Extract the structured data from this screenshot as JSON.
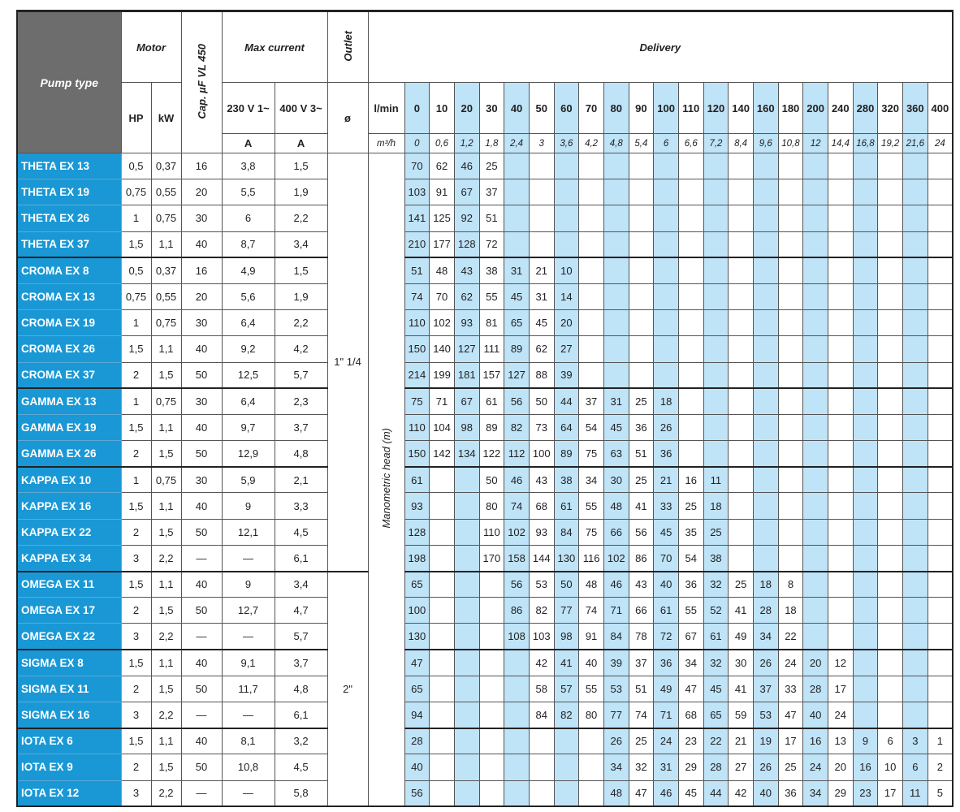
{
  "header": {
    "pump_type": "Pump type",
    "motor": "Motor",
    "hp": "HP",
    "kw": "kW",
    "cap": "Cap. µF VL 450",
    "max_current": "Max current",
    "v230": "230 V 1~",
    "v400": "400 V 3~",
    "unit_a1": "A",
    "unit_a2": "A",
    "outlet": "Outlet",
    "outlet_symbol": "ø",
    "delivery": "Delivery",
    "lmin_label": "l/min",
    "m3h_label": "m³/h",
    "head_label": "Manometric head (m)"
  },
  "flow_lmin": [
    "0",
    "10",
    "20",
    "30",
    "40",
    "50",
    "60",
    "70",
    "80",
    "90",
    "100",
    "110",
    "120",
    "140",
    "160",
    "180",
    "200",
    "240",
    "280",
    "320",
    "360",
    "400"
  ],
  "flow_m3h": [
    "0",
    "0,6",
    "1,2",
    "1,8",
    "2,4",
    "3",
    "3,6",
    "4,2",
    "4,8",
    "5,4",
    "6",
    "6,6",
    "7,2",
    "8,4",
    "9,6",
    "10,8",
    "12",
    "14,4",
    "16,8",
    "19,2",
    "21,6",
    "24"
  ],
  "outlets": [
    {
      "label": "1\" 1/4",
      "rows": 16
    },
    {
      "label": "2\"",
      "rows": 9
    }
  ],
  "colors": {
    "pump_name_bg": "#1a98d5",
    "header_bg": "#6d6d6d",
    "stripe": "#bfe3f7"
  },
  "groups": [
    {
      "rows": [
        {
          "name": "THETA EX 13",
          "hp": "0,5",
          "kw": "0,37",
          "cap": "16",
          "a230": "3,8",
          "a400": "1,5",
          "head": [
            "70",
            "62",
            "46",
            "25"
          ]
        },
        {
          "name": "THETA EX 19",
          "hp": "0,75",
          "kw": "0,55",
          "cap": "20",
          "a230": "5,5",
          "a400": "1,9",
          "head": [
            "103",
            "91",
            "67",
            "37"
          ]
        },
        {
          "name": "THETA EX 26",
          "hp": "1",
          "kw": "0,75",
          "cap": "30",
          "a230": "6",
          "a400": "2,2",
          "head": [
            "141",
            "125",
            "92",
            "51"
          ]
        },
        {
          "name": "THETA EX 37",
          "hp": "1,5",
          "kw": "1,1",
          "cap": "40",
          "a230": "8,7",
          "a400": "3,4",
          "head": [
            "210",
            "177",
            "128",
            "72"
          ]
        }
      ]
    },
    {
      "rows": [
        {
          "name": "CROMA EX 8",
          "hp": "0,5",
          "kw": "0,37",
          "cap": "16",
          "a230": "4,9",
          "a400": "1,5",
          "head": [
            "51",
            "48",
            "43",
            "38",
            "31",
            "21",
            "10"
          ]
        },
        {
          "name": "CROMA EX 13",
          "hp": "0,75",
          "kw": "0,55",
          "cap": "20",
          "a230": "5,6",
          "a400": "1,9",
          "head": [
            "74",
            "70",
            "62",
            "55",
            "45",
            "31",
            "14"
          ]
        },
        {
          "name": "CROMA EX 19",
          "hp": "1",
          "kw": "0,75",
          "cap": "30",
          "a230": "6,4",
          "a400": "2,2",
          "head": [
            "110",
            "102",
            "93",
            "81",
            "65",
            "45",
            "20"
          ]
        },
        {
          "name": "CROMA EX 26",
          "hp": "1,5",
          "kw": "1,1",
          "cap": "40",
          "a230": "9,2",
          "a400": "4,2",
          "head": [
            "150",
            "140",
            "127",
            "111",
            "89",
            "62",
            "27"
          ]
        },
        {
          "name": "CROMA EX 37",
          "hp": "2",
          "kw": "1,5",
          "cap": "50",
          "a230": "12,5",
          "a400": "5,7",
          "head": [
            "214",
            "199",
            "181",
            "157",
            "127",
            "88",
            "39"
          ]
        }
      ]
    },
    {
      "rows": [
        {
          "name": "GAMMA EX 13",
          "hp": "1",
          "kw": "0,75",
          "cap": "30",
          "a230": "6,4",
          "a400": "2,3",
          "head": [
            "75",
            "71",
            "67",
            "61",
            "56",
            "50",
            "44",
            "37",
            "31",
            "25",
            "18"
          ]
        },
        {
          "name": "GAMMA EX 19",
          "hp": "1,5",
          "kw": "1,1",
          "cap": "40",
          "a230": "9,7",
          "a400": "3,7",
          "head": [
            "110",
            "104",
            "98",
            "89",
            "82",
            "73",
            "64",
            "54",
            "45",
            "36",
            "26"
          ]
        },
        {
          "name": "GAMMA EX 26",
          "hp": "2",
          "kw": "1,5",
          "cap": "50",
          "a230": "12,9",
          "a400": "4,8",
          "head": [
            "150",
            "142",
            "134",
            "122",
            "112",
            "100",
            "89",
            "75",
            "63",
            "51",
            "36"
          ]
        }
      ]
    },
    {
      "rows": [
        {
          "name": "KAPPA EX 10",
          "hp": "1",
          "kw": "0,75",
          "cap": "30",
          "a230": "5,9",
          "a400": "2,1",
          "head": [
            "61",
            "",
            "",
            "50",
            "46",
            "43",
            "38",
            "34",
            "30",
            "25",
            "21",
            "16",
            "11"
          ]
        },
        {
          "name": "KAPPA EX 16",
          "hp": "1,5",
          "kw": "1,1",
          "cap": "40",
          "a230": "9",
          "a400": "3,3",
          "head": [
            "93",
            "",
            "",
            "80",
            "74",
            "68",
            "61",
            "55",
            "48",
            "41",
            "33",
            "25",
            "18"
          ]
        },
        {
          "name": "KAPPA EX 22",
          "hp": "2",
          "kw": "1,5",
          "cap": "50",
          "a230": "12,1",
          "a400": "4,5",
          "head": [
            "128",
            "",
            "",
            "110",
            "102",
            "93",
            "84",
            "75",
            "66",
            "56",
            "45",
            "35",
            "25"
          ]
        },
        {
          "name": "KAPPA EX 34",
          "hp": "3",
          "kw": "2,2",
          "cap": "—",
          "a230": "—",
          "a400": "6,1",
          "head": [
            "198",
            "",
            "",
            "170",
            "158",
            "144",
            "130",
            "116",
            "102",
            "86",
            "70",
            "54",
            "38"
          ]
        }
      ]
    },
    {
      "rows": [
        {
          "name": "OMEGA EX 11",
          "hp": "1,5",
          "kw": "1,1",
          "cap": "40",
          "a230": "9",
          "a400": "3,4",
          "head": [
            "65",
            "",
            "",
            "",
            "56",
            "53",
            "50",
            "48",
            "46",
            "43",
            "40",
            "36",
            "32",
            "25",
            "18",
            "8"
          ]
        },
        {
          "name": "OMEGA EX 17",
          "hp": "2",
          "kw": "1,5",
          "cap": "50",
          "a230": "12,7",
          "a400": "4,7",
          "head": [
            "100",
            "",
            "",
            "",
            "86",
            "82",
            "77",
            "74",
            "71",
            "66",
            "61",
            "55",
            "52",
            "41",
            "28",
            "18"
          ]
        },
        {
          "name": "OMEGA EX 22",
          "hp": "3",
          "kw": "2,2",
          "cap": "—",
          "a230": "—",
          "a400": "5,7",
          "head": [
            "130",
            "",
            "",
            "",
            "108",
            "103",
            "98",
            "91",
            "84",
            "78",
            "72",
            "67",
            "61",
            "49",
            "34",
            "22"
          ]
        }
      ]
    },
    {
      "rows": [
        {
          "name": "SIGMA EX 8",
          "hp": "1,5",
          "kw": "1,1",
          "cap": "40",
          "a230": "9,1",
          "a400": "3,7",
          "head": [
            "47",
            "",
            "",
            "",
            "",
            "42",
            "41",
            "40",
            "39",
            "37",
            "36",
            "34",
            "32",
            "30",
            "26",
            "24",
            "20",
            "12"
          ]
        },
        {
          "name": "SIGMA EX 11",
          "hp": "2",
          "kw": "1,5",
          "cap": "50",
          "a230": "11,7",
          "a400": "4,8",
          "head": [
            "65",
            "",
            "",
            "",
            "",
            "58",
            "57",
            "55",
            "53",
            "51",
            "49",
            "47",
            "45",
            "41",
            "37",
            "33",
            "28",
            "17"
          ]
        },
        {
          "name": "SIGMA EX 16",
          "hp": "3",
          "kw": "2,2",
          "cap": "—",
          "a230": "—",
          "a400": "6,1",
          "head": [
            "94",
            "",
            "",
            "",
            "",
            "84",
            "82",
            "80",
            "77",
            "74",
            "71",
            "68",
            "65",
            "59",
            "53",
            "47",
            "40",
            "24"
          ]
        }
      ]
    },
    {
      "rows": [
        {
          "name": "IOTA EX 6",
          "hp": "1,5",
          "kw": "1,1",
          "cap": "40",
          "a230": "8,1",
          "a400": "3,2",
          "head": [
            "28",
            "",
            "",
            "",
            "",
            "",
            "",
            "",
            "26",
            "25",
            "24",
            "23",
            "22",
            "21",
            "19",
            "17",
            "16",
            "13",
            "9",
            "6",
            "3",
            "1"
          ]
        },
        {
          "name": "IOTA EX 9",
          "hp": "2",
          "kw": "1,5",
          "cap": "50",
          "a230": "10,8",
          "a400": "4,5",
          "head": [
            "40",
            "",
            "",
            "",
            "",
            "",
            "",
            "",
            "34",
            "32",
            "31",
            "29",
            "28",
            "27",
            "26",
            "25",
            "24",
            "20",
            "16",
            "10",
            "6",
            "2"
          ]
        },
        {
          "name": "IOTA EX 12",
          "hp": "3",
          "kw": "2,2",
          "cap": "—",
          "a230": "—",
          "a400": "5,8",
          "head": [
            "56",
            "",
            "",
            "",
            "",
            "",
            "",
            "",
            "48",
            "47",
            "46",
            "45",
            "44",
            "42",
            "40",
            "36",
            "34",
            "29",
            "23",
            "17",
            "11",
            "5"
          ]
        }
      ]
    }
  ]
}
